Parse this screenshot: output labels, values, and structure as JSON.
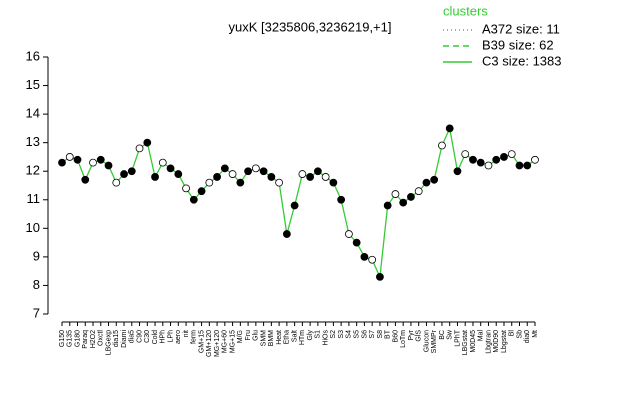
{
  "chart_data": {
    "type": "line",
    "title": "yuxK [3235806,3236219,+1]",
    "categories": [
      "G150",
      "G135",
      "G180",
      "Paraq",
      "H2O2",
      "Oxctl",
      "LBGexp",
      "dia15",
      "Diami",
      "dia5",
      "C90",
      "C30",
      "Cold",
      "HPh",
      "LPh",
      "aero",
      "nit",
      "ferm",
      "GM+15",
      "GM+120",
      "MG+120",
      "MG+60",
      "MG+15",
      "M/G",
      "Fru",
      "Glu",
      "SMM",
      "BMM",
      "Heat",
      "Etha",
      "Salt",
      "HTm",
      "Gly",
      "S1",
      "HiOs",
      "S2",
      "S3",
      "S4",
      "S5",
      "S6",
      "S7",
      "S8",
      "BT",
      "B60",
      "LoTm",
      "Pyr",
      "GlS",
      "Glucon",
      "SMMPr",
      "BC",
      "Sw",
      "LPhT",
      "LBGstat",
      "M0D45",
      "Mal",
      "Lbgtran",
      "M0D90",
      "Lbgstat",
      "Bl",
      "Sb",
      "dia0",
      "Mt"
    ],
    "series": [
      {
        "name": "C3 size: 1383",
        "color": "#33cc33",
        "values": [
          12.3,
          12.5,
          12.4,
          11.7,
          12.3,
          12.4,
          12.2,
          11.6,
          11.9,
          12.0,
          12.8,
          13.0,
          11.8,
          12.3,
          12.1,
          11.9,
          11.4,
          11.0,
          11.3,
          11.6,
          11.8,
          12.1,
          11.9,
          11.6,
          12.0,
          12.1,
          12.0,
          11.8,
          11.6,
          9.8,
          10.8,
          11.9,
          11.8,
          12.0,
          11.8,
          11.6,
          11.0,
          9.8,
          9.5,
          9.0,
          8.9,
          8.3,
          10.8,
          11.2,
          10.9,
          11.1,
          11.3,
          11.6,
          11.7,
          12.9,
          13.5,
          12.0,
          12.6,
          12.4,
          12.3,
          12.2,
          12.4,
          12.5,
          12.6,
          12.2,
          12.2,
          12.4
        ]
      }
    ],
    "legend": {
      "title": "clusters",
      "color": "#33cc33",
      "entries": [
        {
          "label": "A372 size: 11",
          "dash": "1,3"
        },
        {
          "label": "B39 size: 62",
          "dash": "6,4"
        },
        {
          "label": "C3 size: 1383",
          "dash": "none"
        }
      ]
    },
    "ylim": [
      7,
      16
    ],
    "yticks": [
      7,
      8,
      9,
      10,
      11,
      12,
      13,
      14,
      15,
      16
    ]
  }
}
